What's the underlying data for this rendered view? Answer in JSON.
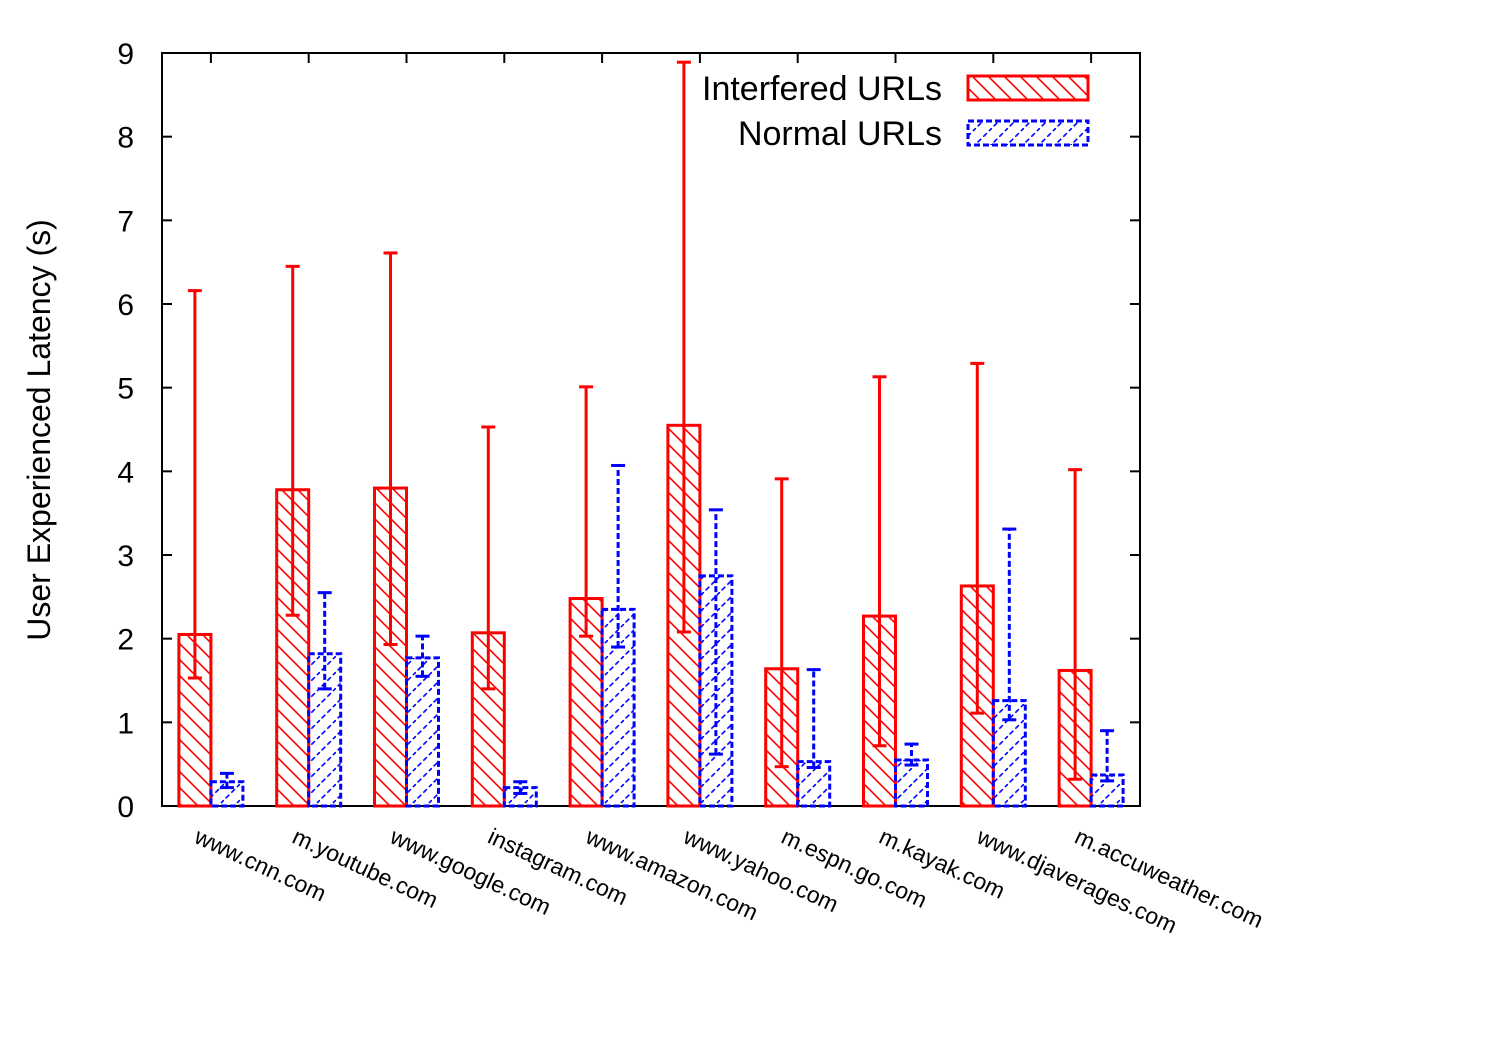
{
  "chart_data": {
    "type": "bar",
    "title": "",
    "xlabel": "",
    "ylabel": "User Experienced Latency (s)",
    "ylim": [
      0,
      9
    ],
    "yticks": [
      "0",
      "1",
      "2",
      "3",
      "4",
      "5",
      "6",
      "7",
      "8",
      "9"
    ],
    "grid": false,
    "legend_position": "top-right",
    "categories": [
      "www.cnn.com",
      "m.youtube.com",
      "www.google.com",
      "instagram.com",
      "www.amazon.com",
      "www.yahoo.com",
      "m.espn.go.com",
      "m.kayak.com",
      "www.djaverages.com",
      "m.accuweather.com"
    ],
    "series": [
      {
        "name": "Interfered URLs",
        "color": "#ff0000",
        "pattern": "diagonal-hatch-backslash",
        "line_style": "solid",
        "values": [
          2.05,
          3.78,
          3.8,
          2.07,
          2.48,
          4.55,
          1.64,
          2.27,
          2.63,
          1.62
        ],
        "err_low": [
          1.53,
          2.28,
          1.93,
          1.4,
          2.03,
          2.08,
          0.47,
          0.72,
          1.11,
          0.32
        ],
        "err_high": [
          6.16,
          6.45,
          6.61,
          4.53,
          5.01,
          8.89,
          3.91,
          5.13,
          5.29,
          4.02
        ]
      },
      {
        "name": "Normal URLs",
        "color": "#0000ff",
        "pattern": "diagonal-hatch-slash",
        "line_style": "dashed",
        "values": [
          0.29,
          1.82,
          1.77,
          0.22,
          2.35,
          2.75,
          0.53,
          0.55,
          1.26,
          0.37
        ],
        "err_low": [
          0.22,
          1.4,
          1.55,
          0.15,
          1.9,
          0.62,
          0.46,
          0.49,
          1.03,
          0.3
        ],
        "err_high": [
          0.39,
          2.55,
          2.03,
          0.29,
          4.07,
          3.54,
          1.63,
          0.74,
          3.31,
          0.9
        ]
      }
    ]
  }
}
